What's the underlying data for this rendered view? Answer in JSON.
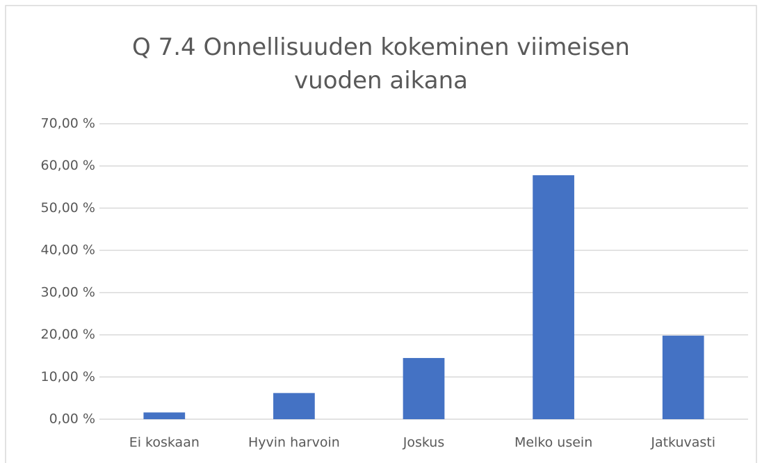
{
  "chart_data": {
    "type": "bar",
    "title": "Q 7.4 Onnellisuuden kokeminen viimeisen vuoden aikana",
    "categories": [
      "Ei koskaan",
      "Hyvin harvoin",
      "Joskus",
      "Melko usein",
      "Jatkuvasti"
    ],
    "values": [
      1.6,
      6.2,
      14.5,
      57.8,
      19.8
    ],
    "color": "#4472c4",
    "ylim": [
      0,
      70
    ],
    "yticks": [
      {
        "value": 0,
        "label": "0,00 %"
      },
      {
        "value": 10,
        "label": "10,00 %"
      },
      {
        "value": 20,
        "label": "20,00 %"
      },
      {
        "value": 30,
        "label": "30,00 %"
      },
      {
        "value": 40,
        "label": "40,00 %"
      },
      {
        "value": 50,
        "label": "50,00 %"
      },
      {
        "value": 60,
        "label": "60,00 %"
      },
      {
        "value": 70,
        "label": "70,00 %"
      }
    ],
    "grid": true
  }
}
